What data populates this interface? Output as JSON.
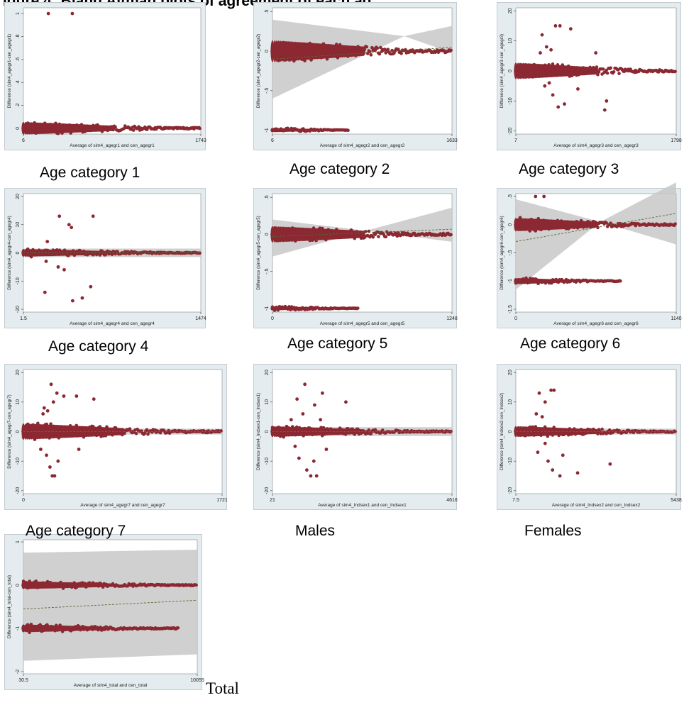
{
  "page": {
    "heading": "igure 4: Bland Altman plots of agreement of each ag",
    "captions": [
      "Age category 1",
      "Age category 2",
      "Age category 3",
      "Age category 4",
      "Age category 5",
      "Age category 6",
      "Age category 7",
      "Males",
      "Females",
      "Total"
    ]
  },
  "colors": {
    "marker": "#8b2832",
    "band": "#c8c8c8",
    "fit": "#556b2f",
    "panel_bg": "#e4ecef",
    "plot_bg": "#ffffff"
  },
  "chart_data": [
    {
      "type": "scatter",
      "xlabel": "Average of sim4_agegr1 and cen_agegr1",
      "ylabel": "Difference (sim4_agegr1-cen_agegr1)",
      "x_ticks": [
        "6",
        "1743"
      ],
      "xlim": [
        6,
        1743
      ],
      "y_ticks": [
        "0",
        ".2",
        ".4",
        ".6",
        ".8",
        "1"
      ],
      "ylim": [
        -0.05,
        1.05
      ],
      "band": null,
      "clusters": [
        {
          "y": 0,
          "x_start": 6,
          "x_end": 1743,
          "spread": 0.06
        }
      ],
      "points": [
        {
          "x": 250,
          "y": 1
        },
        {
          "x": 485,
          "y": 1
        }
      ]
    },
    {
      "type": "scatter",
      "xlabel": "Average of sim4_agegr2 and cen_agegr2",
      "ylabel": "Difference (sim4_agegr2-cen_agegr2)",
      "x_ticks": [
        "6",
        "1633"
      ],
      "xlim": [
        6,
        1633
      ],
      "y_ticks": [
        "-1",
        "-.5",
        "0",
        ".5"
      ],
      "ylim": [
        -1.05,
        0.55
      ],
      "band": {
        "left": [
          -0.6,
          0.4
        ],
        "right": [
          -0.02,
          0.32
        ],
        "x_cross": 1200
      },
      "fit": {
        "start": -0.1,
        "end": 0.05
      },
      "clusters": [
        {
          "y": 0,
          "x_start": 6,
          "x_end": 1633,
          "spread": 0.15
        },
        {
          "y": -1,
          "x_start": 6,
          "x_end": 700,
          "spread": 0.03
        }
      ],
      "points": []
    },
    {
      "type": "scatter",
      "xlabel": "Average of sim4_agegr3 and cen_agegr3",
      "ylabel": "Difference (sim4_agegr3-cen_agegr3)",
      "x_ticks": [
        "7",
        "1798"
      ],
      "xlim": [
        7,
        1798
      ],
      "y_ticks": [
        "-20",
        "-10",
        "0",
        "10",
        "20"
      ],
      "ylim": [
        -21,
        21
      ],
      "band": null,
      "clusters": [
        {
          "y": 0,
          "x_start": 7,
          "x_end": 1798,
          "spread": 3
        }
      ],
      "points": [
        {
          "x": 300,
          "y": 12
        },
        {
          "x": 450,
          "y": 15
        },
        {
          "x": 500,
          "y": 15
        },
        {
          "x": 620,
          "y": 14
        },
        {
          "x": 350,
          "y": 8
        },
        {
          "x": 280,
          "y": 6
        },
        {
          "x": 400,
          "y": 7
        },
        {
          "x": 900,
          "y": 6
        },
        {
          "x": 330,
          "y": -5
        },
        {
          "x": 420,
          "y": -8
        },
        {
          "x": 480,
          "y": -12
        },
        {
          "x": 550,
          "y": -11
        },
        {
          "x": 700,
          "y": -6
        },
        {
          "x": 1000,
          "y": -13
        },
        {
          "x": 1020,
          "y": -10
        },
        {
          "x": 380,
          "y": -4
        }
      ]
    },
    {
      "type": "scatter",
      "xlabel": "Average of sim4_agegr4 and cen_agegr4",
      "ylabel": "Difference (sim4_agegr4-cen_agegr4)",
      "x_ticks": [
        "1.5",
        "1474"
      ],
      "xlim": [
        1.5,
        1474
      ],
      "y_ticks": [
        "-20",
        "-10",
        "0",
        "10",
        "20"
      ],
      "ylim": [
        -21,
        21
      ],
      "band": {
        "left": [
          -1.5,
          1.5
        ],
        "right": [
          -1.5,
          1.5
        ],
        "x_cross": null
      },
      "fit": {
        "start": 0,
        "end": 0
      },
      "clusters": [
        {
          "y": 0,
          "x_start": 1.5,
          "x_end": 1474,
          "spread": 1.5
        }
      ],
      "points": [
        {
          "x": 300,
          "y": 13
        },
        {
          "x": 380,
          "y": 10
        },
        {
          "x": 400,
          "y": 9
        },
        {
          "x": 200,
          "y": 4
        },
        {
          "x": 190,
          "y": -3
        },
        {
          "x": 290,
          "y": -5
        },
        {
          "x": 410,
          "y": -17
        },
        {
          "x": 490,
          "y": -16
        },
        {
          "x": 580,
          "y": 13
        },
        {
          "x": 560,
          "y": -12
        },
        {
          "x": 180,
          "y": -14
        },
        {
          "x": 340,
          "y": -6
        }
      ]
    },
    {
      "type": "scatter",
      "xlabel": "Average of sim4_agegr5 and cen_agegr5",
      "ylabel": "Difference (sim4_agegr5-cen_agegr5)",
      "x_ticks": [
        "0",
        "1248"
      ],
      "xlim": [
        0,
        1248
      ],
      "y_ticks": [
        "-1",
        "-.5",
        "0",
        ".5"
      ],
      "ylim": [
        -1.05,
        0.55
      ],
      "band": {
        "left": [
          -0.3,
          0.2
        ],
        "right": [
          -0.1,
          0.36
        ],
        "x_cross": 650
      },
      "fit": {
        "start": -0.03,
        "end": 0.07
      },
      "clusters": [
        {
          "y": 0,
          "x_start": 0,
          "x_end": 1248,
          "spread": 0.12
        },
        {
          "y": -1,
          "x_start": 0,
          "x_end": 600,
          "spread": 0.03
        }
      ],
      "points": []
    },
    {
      "type": "scatter",
      "xlabel": "Average of sim4_agegr6 and cen_agegr6",
      "ylabel": "Difference (sim4_agegr6-cen_agegr6)",
      "x_ticks": [
        "0",
        "1140"
      ],
      "xlim": [
        0,
        1140
      ],
      "y_ticks": [
        "-1.5",
        "-1",
        "-.5",
        "0",
        ".5"
      ],
      "ylim": [
        -1.55,
        0.55
      ],
      "band": {
        "left": [
          -1.15,
          0.45
        ],
        "right": [
          -0.35,
          0.75
        ],
        "x_cross": 600
      },
      "fit": {
        "start": -0.3,
        "end": 0.2
      },
      "clusters": [
        {
          "y": 0,
          "x_start": 0,
          "x_end": 1140,
          "spread": 0.13
        },
        {
          "y": -1,
          "x_start": 0,
          "x_end": 750,
          "spread": 0.06
        }
      ],
      "points": [
        {
          "x": 140,
          "y": 0.5
        },
        {
          "x": 200,
          "y": 0.5
        }
      ]
    },
    {
      "type": "scatter",
      "xlabel": "Average of sim4_agegr7 and cen_agegr7",
      "ylabel": "Difference (sim4_agegr7-cen_agegr7)",
      "x_ticks": [
        "0",
        "1721"
      ],
      "xlim": [
        0,
        1721
      ],
      "y_ticks": [
        "-20",
        "-10",
        "0",
        "10",
        "20"
      ],
      "ylim": [
        -21,
        21
      ],
      "band": {
        "left": [
          -1,
          1
        ],
        "right": [
          -1,
          1
        ],
        "x_cross": null
      },
      "fit": {
        "start": 0,
        "end": 0
      },
      "clusters": [
        {
          "y": 0,
          "x_start": 0,
          "x_end": 1721,
          "spread": 3
        }
      ],
      "points": [
        {
          "x": 180,
          "y": 8
        },
        {
          "x": 240,
          "y": 16
        },
        {
          "x": 290,
          "y": 13
        },
        {
          "x": 350,
          "y": 12
        },
        {
          "x": 460,
          "y": 12
        },
        {
          "x": 170,
          "y": 6
        },
        {
          "x": 210,
          "y": 7
        },
        {
          "x": 260,
          "y": 10
        },
        {
          "x": 610,
          "y": 11
        },
        {
          "x": 200,
          "y": -8
        },
        {
          "x": 230,
          "y": -12
        },
        {
          "x": 270,
          "y": -15
        },
        {
          "x": 250,
          "y": -15
        },
        {
          "x": 300,
          "y": -10
        },
        {
          "x": 150,
          "y": -6
        },
        {
          "x": 480,
          "y": -6
        }
      ]
    },
    {
      "type": "scatter",
      "xlabel": "Average of sim4_Indsex1 and cen_Indsex1",
      "ylabel": "Difference (sim4_Indsex1-cen_Indsex1)",
      "x_ticks": [
        "21",
        "4616"
      ],
      "xlim": [
        21,
        4616
      ],
      "y_ticks": [
        "-20",
        "-10",
        "0",
        "10",
        "20"
      ],
      "ylim": [
        -21,
        21
      ],
      "band": {
        "left": [
          -1.5,
          1.5
        ],
        "right": [
          -1.5,
          1.5
        ],
        "x_cross": null
      },
      "fit": {
        "start": 0,
        "end": 0
      },
      "clusters": [
        {
          "y": 0,
          "x_start": 21,
          "x_end": 4616,
          "spread": 2
        }
      ],
      "points": [
        {
          "x": 850,
          "y": 16
        },
        {
          "x": 1300,
          "y": 13
        },
        {
          "x": 1900,
          "y": 10
        },
        {
          "x": 650,
          "y": 11
        },
        {
          "x": 1100,
          "y": 9
        },
        {
          "x": 800,
          "y": 6
        },
        {
          "x": 1250,
          "y": 4
        },
        {
          "x": 500,
          "y": 4
        },
        {
          "x": 700,
          "y": -9
        },
        {
          "x": 900,
          "y": -13
        },
        {
          "x": 1000,
          "y": -15
        },
        {
          "x": 1150,
          "y": -15
        },
        {
          "x": 1400,
          "y": -6
        },
        {
          "x": 600,
          "y": -5
        },
        {
          "x": 1080,
          "y": -10
        }
      ]
    },
    {
      "type": "scatter",
      "xlabel": "Average of sim4_Indsex2 and cen_Indsex2",
      "ylabel": "Difference (sim4_Indsex2-cen_Indsex2)",
      "x_ticks": [
        "7.5",
        "5438"
      ],
      "xlim": [
        7.5,
        5438
      ],
      "y_ticks": [
        "-20",
        "-10",
        "0",
        "10",
        "20"
      ],
      "ylim": [
        -21,
        21
      ],
      "band": {
        "left": [
          -1,
          1
        ],
        "right": [
          -1,
          1
        ],
        "x_cross": null
      },
      "fit": {
        "start": 0,
        "end": 0
      },
      "clusters": [
        {
          "y": 0,
          "x_start": 7.5,
          "x_end": 5438,
          "spread": 2
        }
      ],
      "points": [
        {
          "x": 800,
          "y": 13
        },
        {
          "x": 1200,
          "y": 14
        },
        {
          "x": 1300,
          "y": 14
        },
        {
          "x": 1000,
          "y": 10
        },
        {
          "x": 700,
          "y": 6
        },
        {
          "x": 900,
          "y": 5
        },
        {
          "x": 750,
          "y": -7
        },
        {
          "x": 1100,
          "y": -10
        },
        {
          "x": 1250,
          "y": -13
        },
        {
          "x": 1500,
          "y": -15
        },
        {
          "x": 2100,
          "y": -14
        },
        {
          "x": 3200,
          "y": -11
        },
        {
          "x": 1600,
          "y": -8
        },
        {
          "x": 1000,
          "y": -4
        }
      ]
    },
    {
      "type": "scatter",
      "xlabel": "Average of sim4_total and cen_total",
      "ylabel": "Difference (sim4_total-cen_total)",
      "x_ticks": [
        "30.5",
        "10055"
      ],
      "xlim": [
        30.5,
        10055
      ],
      "y_ticks": [
        "-2",
        "-1",
        "0",
        "1"
      ],
      "ylim": [
        -2.05,
        1.05
      ],
      "band": {
        "left": [
          -1.75,
          0.75
        ],
        "right": [
          -1.6,
          0.82
        ],
        "x_cross": null
      },
      "fit": {
        "start": -0.55,
        "end": -0.35
      },
      "clusters": [
        {
          "y": 0,
          "x_start": 30.5,
          "x_end": 10055,
          "spread": 0.1
        },
        {
          "y": -1,
          "x_start": 30.5,
          "x_end": 9000,
          "spread": 0.1
        }
      ],
      "points": []
    }
  ]
}
